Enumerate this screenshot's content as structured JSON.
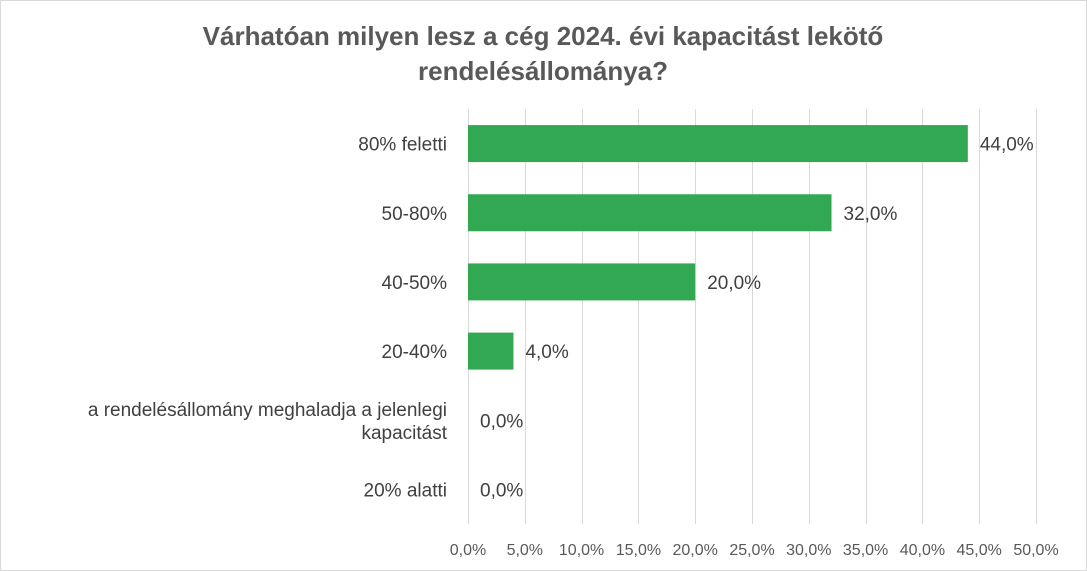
{
  "chart_data": {
    "type": "bar",
    "orientation": "horizontal",
    "title": "Várhatóan milyen lesz a cég 2024. évi kapacitást lekötő rendelésállománya?",
    "title_lines": [
      "Várhatóan milyen lesz a cég 2024. évi kapacitást lekötő",
      "rendelésállománya?"
    ],
    "categories": [
      "80% feletti",
      "50-80%",
      "40-50%",
      "20-40%",
      "a rendelésállomány meghaladja a jelenlegi kapacitást",
      "20% alatti"
    ],
    "category_lines": [
      [
        "80% feletti"
      ],
      [
        "50-80%"
      ],
      [
        "40-50%"
      ],
      [
        "20-40%"
      ],
      [
        "a rendelésállomány meghaladja a jelenlegi",
        "kapacitást"
      ],
      [
        "20% alatti"
      ]
    ],
    "values": [
      44.0,
      32.0,
      20.0,
      4.0,
      0.0,
      0.0
    ],
    "value_labels": [
      "44,0%",
      "32,0%",
      "20,0%",
      "4,0%",
      "0,0%",
      "0,0%"
    ],
    "xlim": [
      0,
      50
    ],
    "ticks": [
      0,
      5,
      10,
      15,
      20,
      25,
      30,
      35,
      40,
      45,
      50
    ],
    "tick_labels": [
      "0,0%",
      "5,0%",
      "10,0%",
      "15,0%",
      "20,0%",
      "25,0%",
      "30,0%",
      "35,0%",
      "40,0%",
      "45,0%",
      "50,0%"
    ],
    "grid": true,
    "legend": false,
    "xlabel": "",
    "ylabel": "",
    "bar_color": "#33a852"
  }
}
